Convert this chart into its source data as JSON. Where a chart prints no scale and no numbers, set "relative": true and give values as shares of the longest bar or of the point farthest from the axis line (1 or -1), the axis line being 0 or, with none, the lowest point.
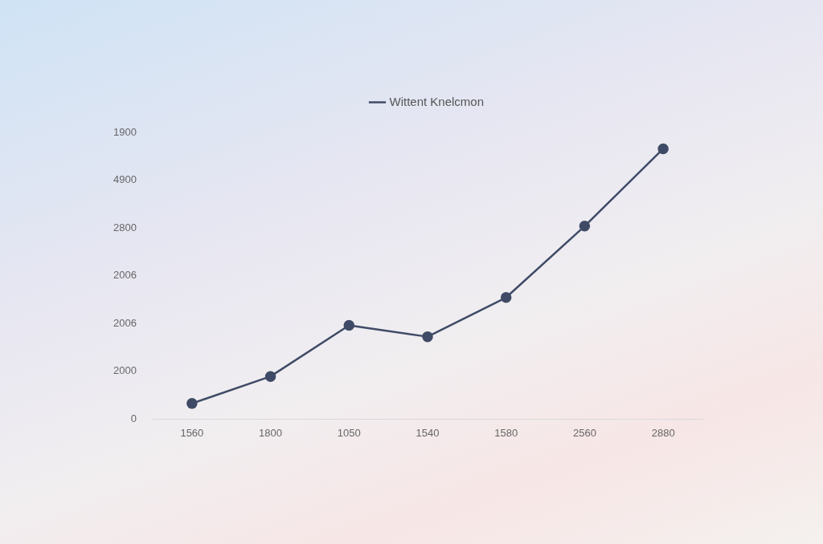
{
  "chart_data": {
    "type": "line",
    "categories": [
      "1560",
      "1800",
      "1050",
      "1540",
      "1580",
      "2560",
      "2880"
    ],
    "series": [
      {
        "name": "Wittent Knelcmon",
        "color": "#3f4b66",
        "values": [
          0.058,
          0.158,
          0.347,
          0.305,
          0.45,
          0.714,
          1
        ]
      }
    ],
    "annotations": [
      "1900",
      "4900",
      "2800",
      "2006",
      "2006",
      "2000",
      "0"
    ],
    "relative": true,
    "legend": "top",
    "marker": "circle",
    "line_style": "solid"
  }
}
